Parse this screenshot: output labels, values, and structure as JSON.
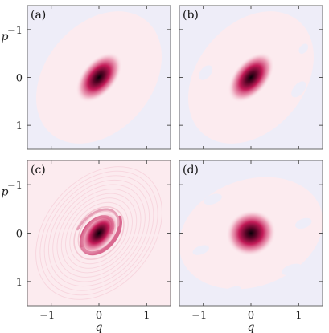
{
  "chart_data": [
    {
      "type": "heatmap",
      "label": "(a)",
      "xlim": [
        -1.5,
        1.5
      ],
      "ylim": [
        -1.5,
        1.5
      ],
      "y_inverted": true,
      "xticks": [
        -1,
        0,
        1
      ],
      "yticks": [
        -1,
        0,
        1
      ],
      "colors": {
        "background": "#eeedf8",
        "plateau": "#fcebef",
        "peak": "#0a0008",
        "mid": "#c31b58"
      },
      "blob": {
        "center": [
          0.0,
          0.0
        ],
        "sigma_major": 0.26,
        "sigma_minor": 0.15,
        "angle_deg": 50
      },
      "rings": false
    },
    {
      "type": "heatmap",
      "label": "(b)",
      "xlim": [
        -1.5,
        1.5
      ],
      "ylim": [
        -1.5,
        1.5
      ],
      "y_inverted": true,
      "xticks": [
        -1,
        0,
        1
      ],
      "yticks": [
        -1,
        0,
        1
      ],
      "colors": {
        "background": "#eeedf8",
        "plateau": "#fcebef",
        "peak": "#0a0008",
        "mid": "#c31b58"
      },
      "blob": {
        "center": [
          0.0,
          0.0
        ],
        "sigma_major": 0.26,
        "sigma_minor": 0.15,
        "angle_deg": 50
      },
      "rings": false
    },
    {
      "type": "heatmap",
      "label": "(c)",
      "xlim": [
        -1.5,
        1.5
      ],
      "ylim": [
        -1.5,
        1.5
      ],
      "y_inverted": true,
      "xticks": [
        -1,
        0,
        1
      ],
      "yticks": [
        -1,
        0,
        1
      ],
      "colors": {
        "background": "#fcebef",
        "plateau": "#fcebef",
        "peak": "#0a0008",
        "mid": "#c31b58"
      },
      "blob": {
        "center": [
          0.0,
          0.0
        ],
        "sigma_major": 0.22,
        "sigma_minor": 0.13,
        "angle_deg": 50
      },
      "rings": true
    },
    {
      "type": "heatmap",
      "label": "(d)",
      "xlim": [
        -1.5,
        1.5
      ],
      "ylim": [
        -1.5,
        1.5
      ],
      "y_inverted": true,
      "xticks": [
        -1,
        0,
        1
      ],
      "yticks": [
        -1,
        0,
        1
      ],
      "colors": {
        "background": "#eeedf8",
        "plateau": "#fcebef",
        "peak": "#0a0008",
        "mid": "#c31b58"
      },
      "blob": {
        "center": [
          0.0,
          0.0
        ],
        "sigma_major": 0.22,
        "sigma_minor": 0.2,
        "angle_deg": 20
      },
      "rings": false
    }
  ],
  "axes": {
    "xlabel": "q",
    "ylabel": "p",
    "tick_texts": [
      "−1",
      "0",
      "1"
    ]
  }
}
